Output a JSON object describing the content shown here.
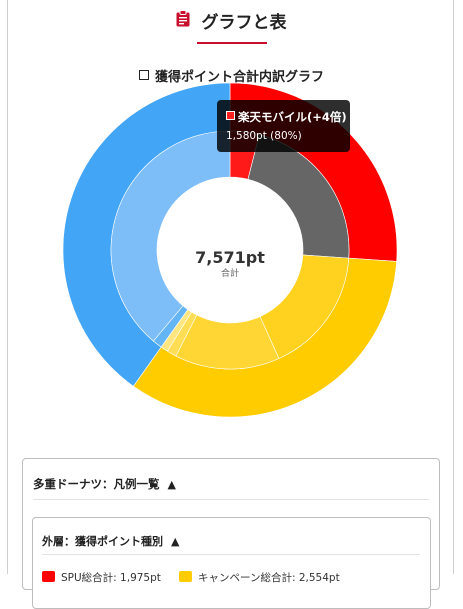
{
  "header": {
    "title": "グラフと表",
    "icon": "clipboard-icon",
    "accent": "#c8102e"
  },
  "chart_data": {
    "type": "donut",
    "title": "獲得ポイント合計内訳グラフ",
    "center": {
      "total": "7,571pt",
      "label": "合計"
    },
    "tooltip": {
      "name": "楽天モバイル(+4倍)",
      "detail": "1,580pt (80%)"
    },
    "outer_ring": [
      {
        "name": "SPU総合計",
        "value": 1975,
        "color": "#ff0000"
      },
      {
        "name": "キャンペーン総合計",
        "value": 2554,
        "color": "#ffcc00"
      },
      {
        "name": "",
        "value": 3042,
        "color": "#42a5f5"
      }
    ],
    "inner_ring": [
      {
        "value": 300,
        "color": "#ff1a1a"
      },
      {
        "value": 1675,
        "color": "#666666"
      },
      {
        "value": 1300,
        "color": "#ffd21f"
      },
      {
        "value": 1079,
        "color": "#ffd633"
      },
      {
        "value": 100,
        "color": "#ffdd55"
      },
      {
        "value": 75,
        "color": "#ffe680"
      },
      {
        "value": 100,
        "color": "#64b5f6"
      },
      {
        "value": 2942,
        "color": "#7dbdf8"
      }
    ]
  },
  "legend": {
    "title": "多重ドーナツ：凡例一覧",
    "toggle": "▲",
    "outer": {
      "title": "外層：獲得ポイント種別",
      "toggle": "▲",
      "items": [
        {
          "label": "SPU総合計: 1,975pt",
          "color": "#ff0000"
        },
        {
          "label": "キャンペーン総合計: 2,554pt",
          "color": "#ffcc00"
        }
      ]
    }
  }
}
